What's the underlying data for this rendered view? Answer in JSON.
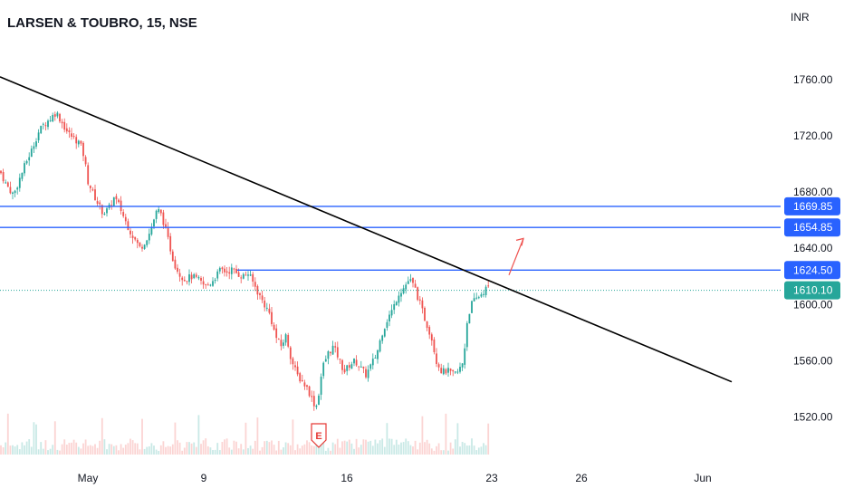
{
  "chart_data": {
    "type": "candlestick",
    "title": "LARSEN & TOUBRO, 15, NSE",
    "currency": "INR",
    "ylim": [
      1503,
      1790
    ],
    "y_ticks": [
      {
        "value": 1760,
        "label": "1760.00"
      },
      {
        "value": 1720,
        "label": "1720.00"
      },
      {
        "value": 1680,
        "label": "1680.00"
      },
      {
        "value": 1640,
        "label": "1640.00"
      },
      {
        "value": 1600,
        "label": "1600.00"
      },
      {
        "value": 1560,
        "label": "1560.00"
      },
      {
        "value": 1520,
        "label": "1520.00"
      }
    ],
    "x_ticks": [
      "May",
      "9",
      "16",
      "23",
      "26",
      "Jun"
    ],
    "price_levels": [
      {
        "value": 1669.85,
        "label": "1669.85",
        "color": "#2962ff"
      },
      {
        "value": 1654.85,
        "label": "1654.85",
        "color": "#2962ff"
      },
      {
        "value": 1624.5,
        "label": "1624.50",
        "color": "#2962ff"
      }
    ],
    "last_price": {
      "value": 1610.1,
      "label": "1610.10",
      "color": "#26a69a"
    },
    "earnings_marker": {
      "label": "E",
      "color": "#e53935"
    },
    "colors": {
      "up": "#26a69a",
      "down": "#ef5350",
      "trendline": "#000000",
      "arrow": "#ef5350"
    },
    "path_points": [
      [
        0,
        1695
      ],
      [
        7,
        1685
      ],
      [
        15,
        1678
      ],
      [
        22,
        1690
      ],
      [
        28,
        1700
      ],
      [
        35,
        1710
      ],
      [
        42,
        1722
      ],
      [
        48,
        1728
      ],
      [
        55,
        1732
      ],
      [
        62,
        1737
      ],
      [
        68,
        1730
      ],
      [
        75,
        1722
      ],
      [
        82,
        1718
      ],
      [
        88,
        1715
      ],
      [
        93,
        1705
      ],
      [
        97,
        1688
      ],
      [
        102,
        1680
      ],
      [
        108,
        1672
      ],
      [
        114,
        1665
      ],
      [
        120,
        1668
      ],
      [
        126,
        1676
      ],
      [
        132,
        1670
      ],
      [
        138,
        1660
      ],
      [
        144,
        1652
      ],
      [
        150,
        1645
      ],
      [
        155,
        1640
      ],
      [
        160,
        1645
      ],
      [
        166,
        1652
      ],
      [
        172,
        1665
      ],
      [
        176,
        1667
      ],
      [
        180,
        1660
      ],
      [
        186,
        1645
      ],
      [
        192,
        1630
      ],
      [
        198,
        1622
      ],
      [
        204,
        1618
      ],
      [
        212,
        1620
      ],
      [
        220,
        1617
      ],
      [
        226,
        1613
      ],
      [
        232,
        1615
      ],
      [
        238,
        1620
      ],
      [
        244,
        1625
      ],
      [
        250,
        1623
      ],
      [
        256,
        1625
      ],
      [
        262,
        1622
      ],
      [
        268,
        1620
      ],
      [
        274,
        1622
      ],
      [
        280,
        1615
      ],
      [
        286,
        1607
      ],
      [
        292,
        1600
      ],
      [
        298,
        1593
      ],
      [
        304,
        1578
      ],
      [
        310,
        1570
      ],
      [
        316,
        1578
      ],
      [
        322,
        1560
      ],
      [
        328,
        1550
      ],
      [
        334,
        1545
      ],
      [
        340,
        1540
      ],
      [
        346,
        1530
      ],
      [
        350,
        1528
      ],
      [
        356,
        1555
      ],
      [
        362,
        1565
      ],
      [
        368,
        1570
      ],
      [
        374,
        1562
      ],
      [
        380,
        1552
      ],
      [
        386,
        1557
      ],
      [
        392,
        1560
      ],
      [
        398,
        1555
      ],
      [
        404,
        1550
      ],
      [
        410,
        1557
      ],
      [
        416,
        1565
      ],
      [
        422,
        1580
      ],
      [
        428,
        1590
      ],
      [
        434,
        1597
      ],
      [
        440,
        1608
      ],
      [
        446,
        1612
      ],
      [
        452,
        1618
      ],
      [
        458,
        1612
      ],
      [
        464,
        1600
      ],
      [
        470,
        1588
      ],
      [
        476,
        1578
      ],
      [
        482,
        1560
      ],
      [
        488,
        1552
      ],
      [
        494,
        1553
      ],
      [
        500,
        1550
      ],
      [
        506,
        1552
      ],
      [
        512,
        1560
      ],
      [
        515,
        1585
      ],
      [
        520,
        1600
      ],
      [
        526,
        1604
      ],
      [
        532,
        1608
      ],
      [
        538,
        1612
      ],
      [
        542,
        1611
      ]
    ],
    "trendline": {
      "start": [
        0,
        1762
      ],
      "end": [
        808,
        1545
      ]
    },
    "arrow": {
      "start": [
        562,
        1621
      ],
      "end": [
        578,
        1647
      ]
    },
    "earnings_x": 352
  }
}
